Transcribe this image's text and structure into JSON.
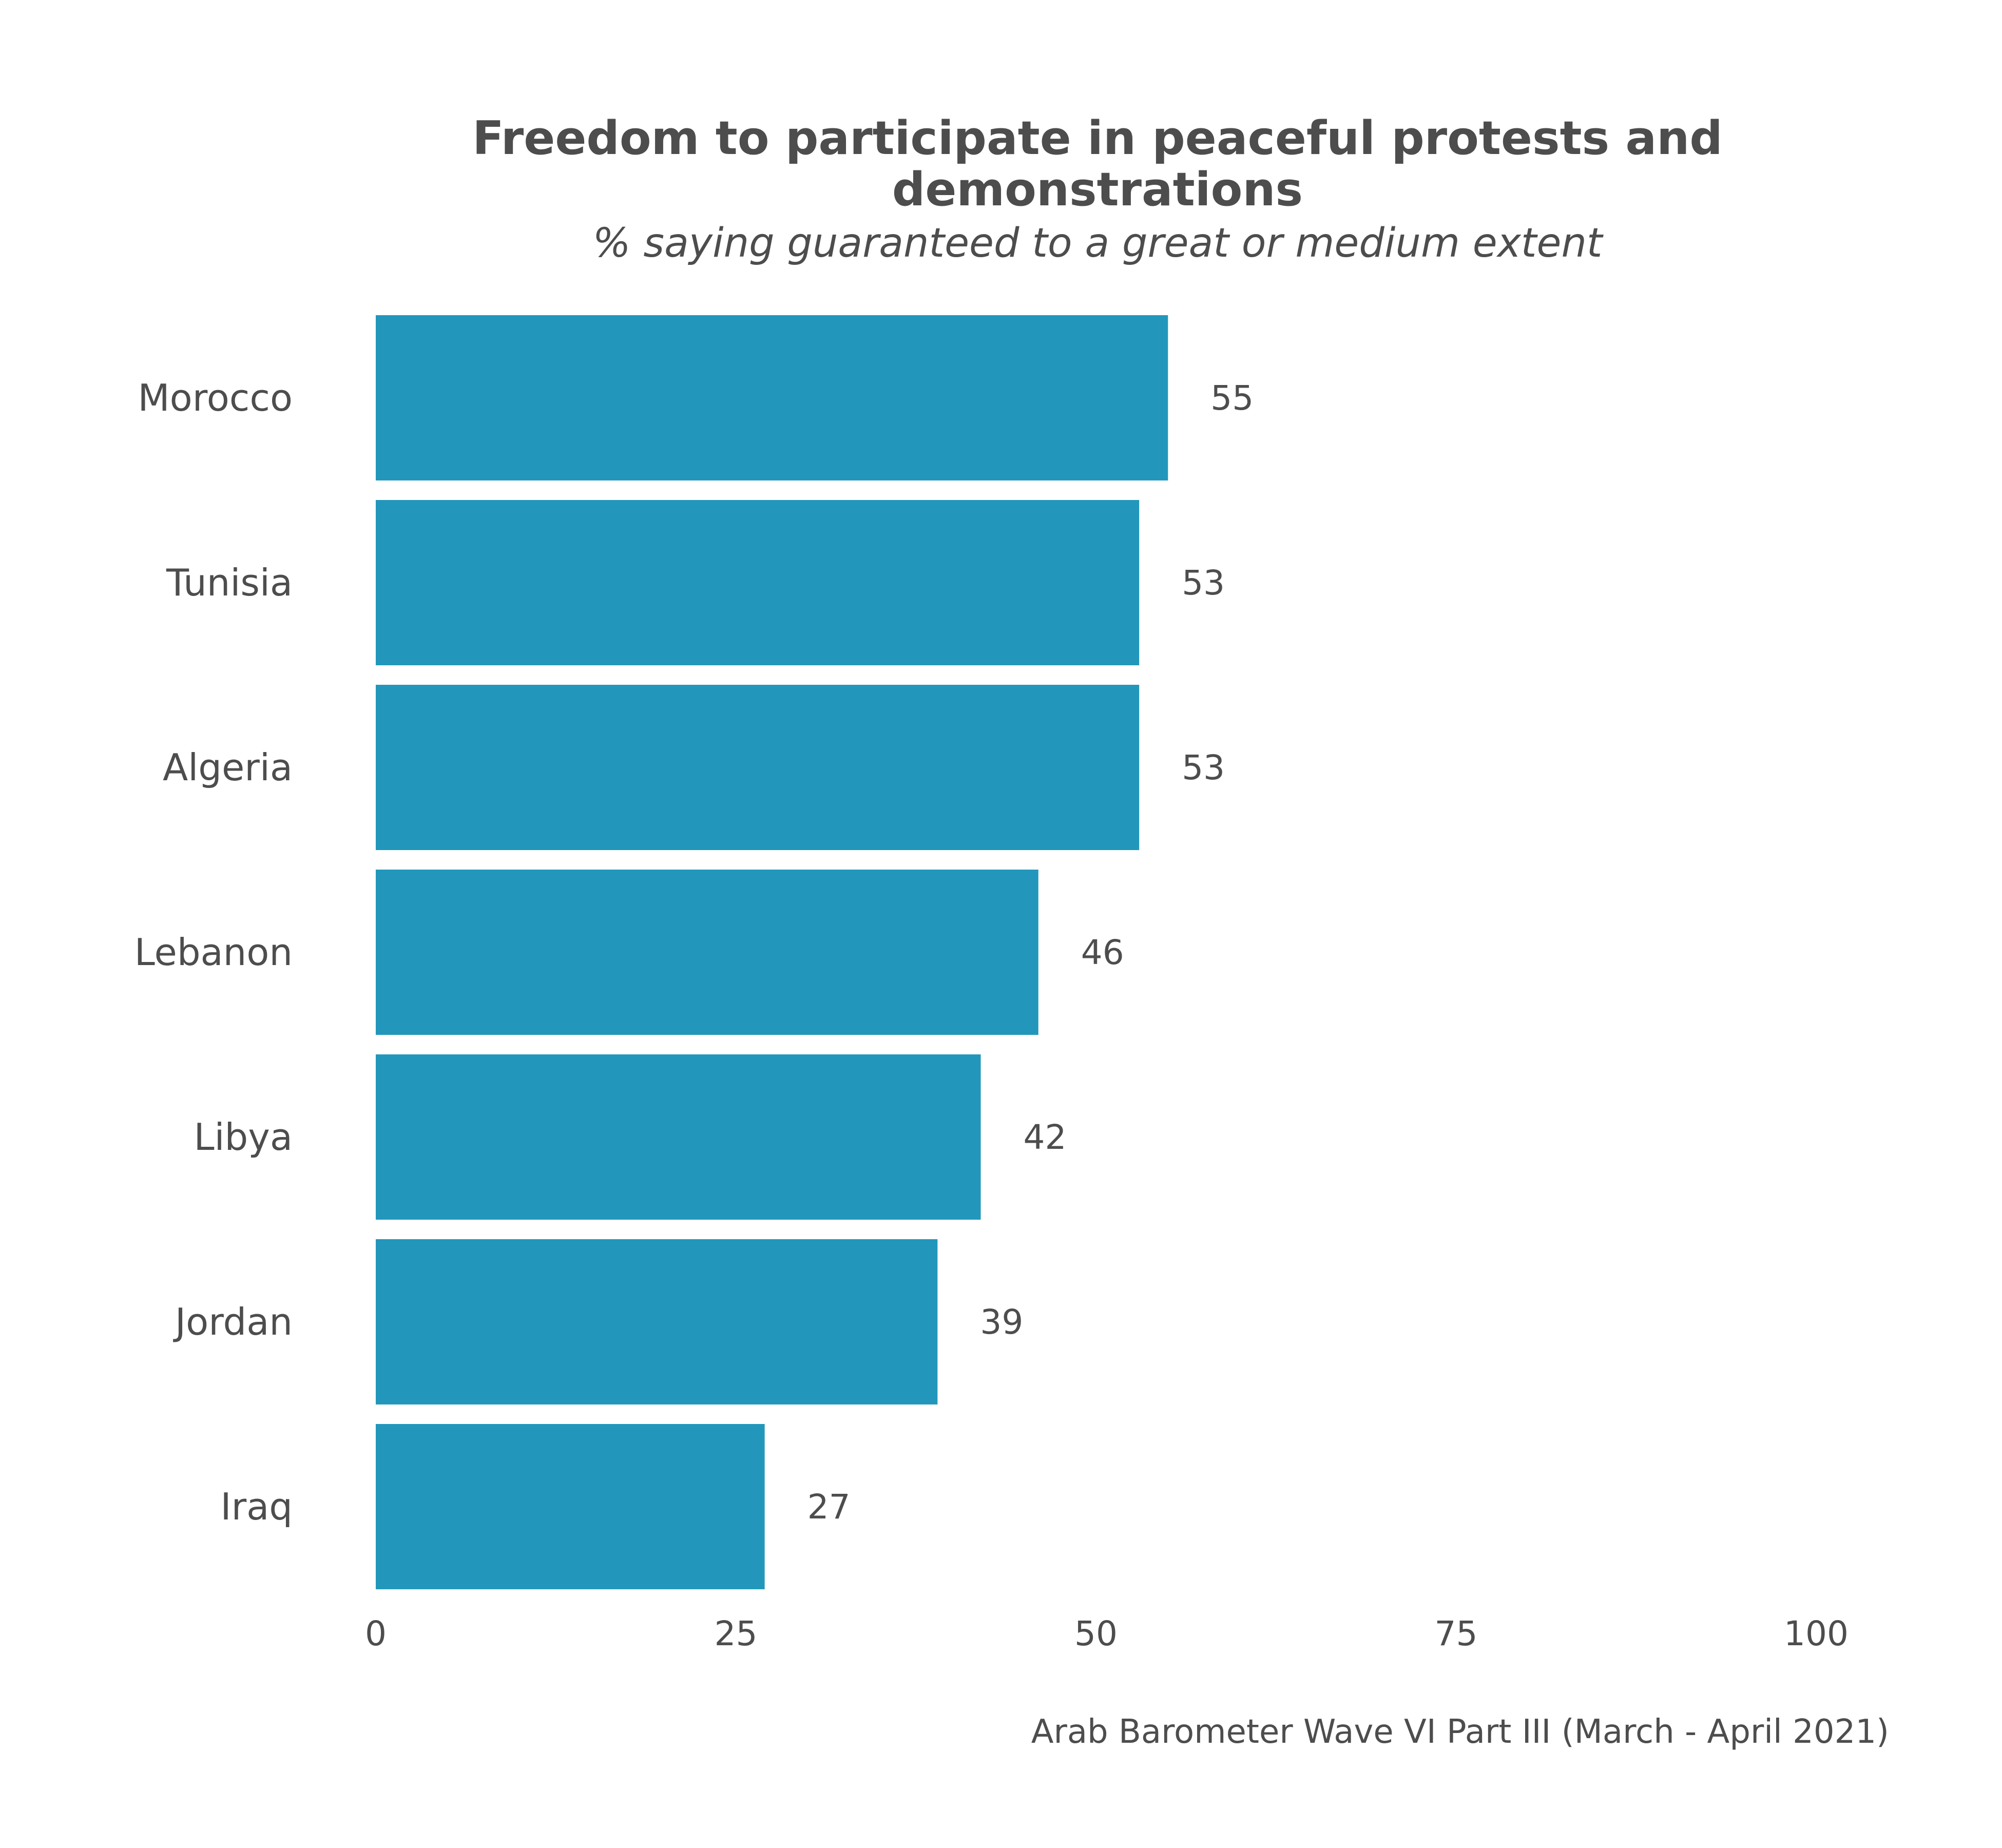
{
  "chart_data": {
    "type": "bar",
    "orientation": "horizontal",
    "title_lines": [
      "Freedom to participate in peaceful protests and",
      "demonstrations"
    ],
    "subtitle": "% saying guaranteed to a great or medium extent",
    "caption": "Arab Barometer Wave VI Part III (March - April 2021)",
    "categories": [
      "Morocco",
      "Tunisia",
      "Algeria",
      "Lebanon",
      "Libya",
      "Jordan",
      "Iraq"
    ],
    "values": [
      55,
      53,
      53,
      46,
      42,
      39,
      27
    ],
    "data_labels": [
      "55",
      "53",
      "53",
      "46",
      "42",
      "39",
      "27"
    ],
    "xlim": [
      0,
      100
    ],
    "xticks": [
      0,
      25,
      50,
      75,
      100
    ],
    "xtick_labels": [
      "0",
      "25",
      "50",
      "75",
      "100"
    ],
    "bar_color": "#2297bb",
    "grid": false,
    "legend": "none"
  }
}
